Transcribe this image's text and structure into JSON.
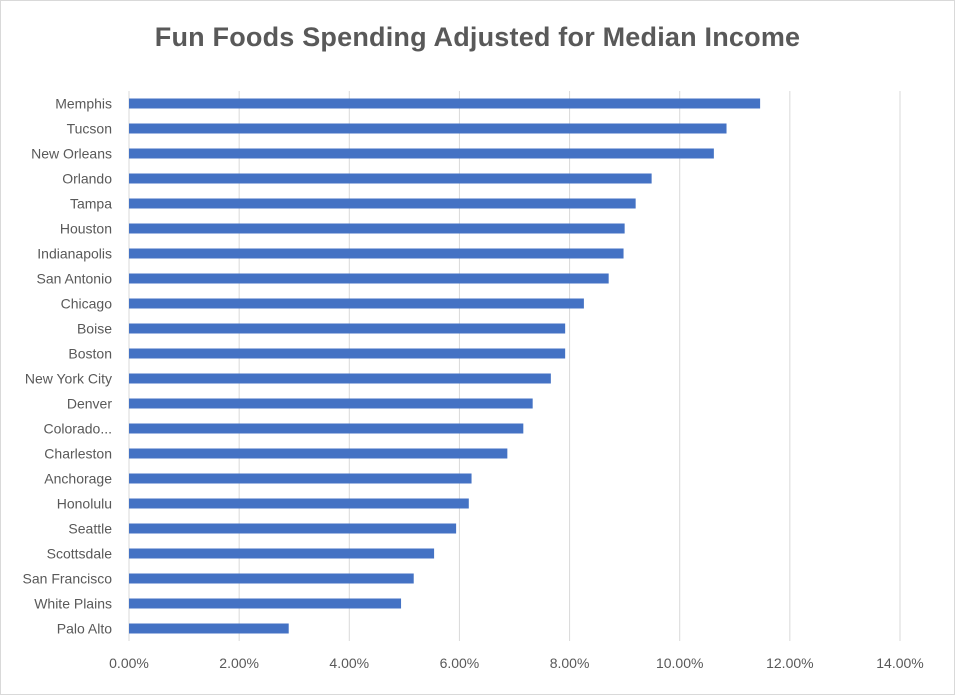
{
  "chart_data": {
    "type": "bar",
    "orientation": "horizontal",
    "title": "Fun Foods Spending Adjusted for Median Income",
    "xlabel": "",
    "ylabel": "",
    "categories": [
      "Memphis",
      "Tucson",
      "New Orleans",
      "Orlando",
      "Tampa",
      "Houston",
      "Indianapolis",
      "San Antonio",
      "Chicago",
      "Boise",
      "Boston",
      "New York City",
      "Denver",
      "Colorado...",
      "Charleston",
      "Anchorage",
      "Honolulu",
      "Seattle",
      "Scottsdale",
      "San Francisco",
      "White Plains",
      "Palo Alto"
    ],
    "values": [
      0.1146,
      0.1085,
      0.1062,
      0.0949,
      0.092,
      0.09,
      0.0898,
      0.0871,
      0.0826,
      0.0792,
      0.0792,
      0.0766,
      0.0733,
      0.0716,
      0.0687,
      0.0622,
      0.0617,
      0.0594,
      0.0554,
      0.0517,
      0.0494,
      0.029
    ],
    "xlim": [
      0,
      0.14
    ],
    "ticks": [
      "0.00%",
      "2.00%",
      "4.00%",
      "6.00%",
      "8.00%",
      "10.00%",
      "12.00%",
      "14.00%"
    ],
    "grid": true,
    "legend": "none",
    "bar_color": "#4472c4",
    "grid_color": "#d9d9d9"
  }
}
